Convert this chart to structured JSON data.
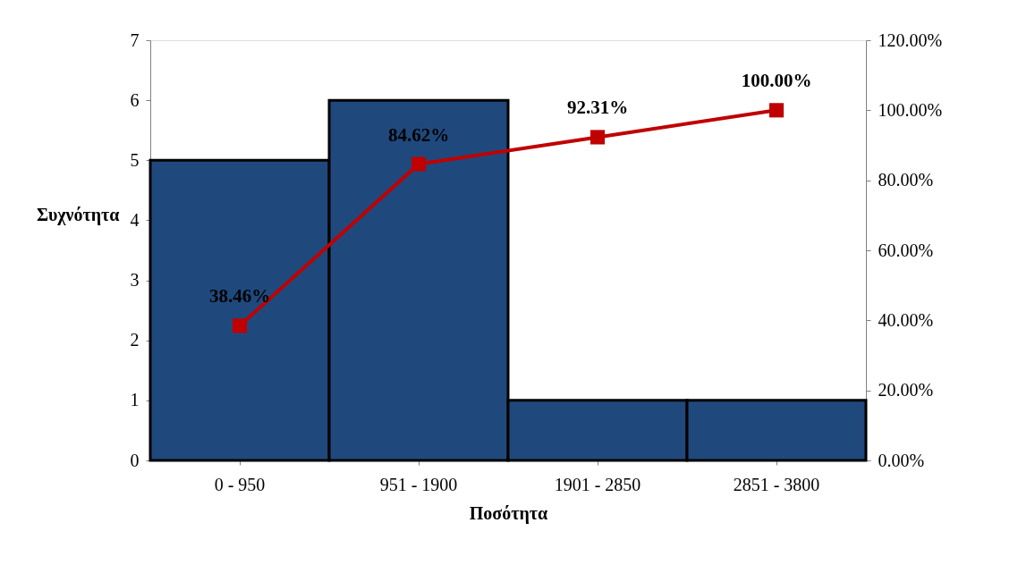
{
  "chart_data": {
    "type": "bar",
    "xlabel": "Ποσότητα",
    "ylabel": "Συχνότητα",
    "categories": [
      "0 - 950",
      "951 - 1900",
      "1901 - 2850",
      "2851 - 3800"
    ],
    "series": [
      {
        "color": "#1f497d",
        "values": [
          5,
          6,
          1,
          1
        ]
      },
      {
        "type": "line",
        "axis": "y2",
        "color": "#c00000",
        "marker": "square",
        "values": [
          38.46,
          84.62,
          92.31,
          100
        ],
        "value_labels": [
          "38.46%",
          "84.62%",
          "92.31%",
          "100.00%"
        ]
      }
    ],
    "ylim": [
      0,
      7
    ],
    "yticks": [
      0,
      1,
      2,
      3,
      4,
      5,
      6,
      7
    ],
    "y2lim": [
      0,
      120
    ],
    "y2ticks": [
      {
        "value": 0,
        "label": "0.00%"
      },
      {
        "value": 20,
        "label": "20.00%"
      },
      {
        "value": 40,
        "label": "40.00%"
      },
      {
        "value": 60,
        "label": "60.00%"
      },
      {
        "value": 80,
        "label": "80.00%"
      },
      {
        "value": 100,
        "label": "100.00%"
      },
      {
        "value": 120,
        "label": "120.00%"
      }
    ],
    "grid": false
  }
}
